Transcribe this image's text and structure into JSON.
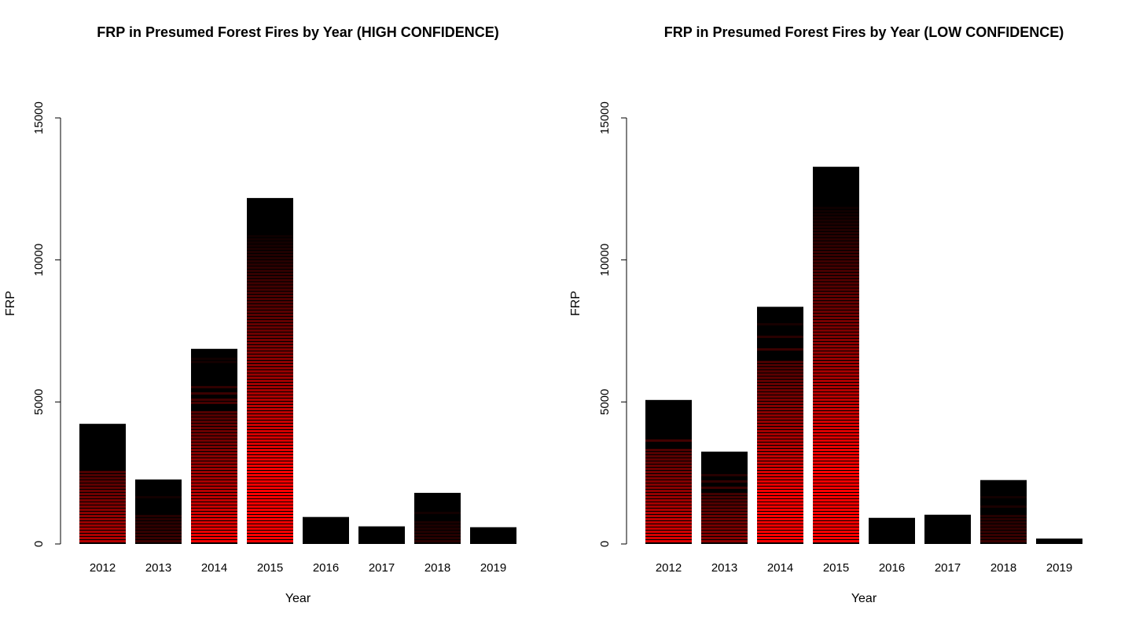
{
  "colors": {
    "background": "#ffffff",
    "bar_base": "#000000",
    "stripe": "#ff0000",
    "axis": "#000000"
  },
  "chart_data": [
    {
      "type": "bar",
      "title": "FRP in Presumed Forest Fires by Year (HIGH CONFIDENCE)",
      "xlabel": "Year",
      "ylabel": "FRP",
      "categories": [
        "2012",
        "2013",
        "2014",
        "2015",
        "2016",
        "2017",
        "2018",
        "2019"
      ],
      "values": [
        4230,
        2270,
        6870,
        12180,
        950,
        620,
        1800,
        590
      ],
      "red_intensity": [
        0.45,
        0.15,
        0.6,
        1.0,
        0.0,
        0.0,
        0.1,
        0.0
      ],
      "ylim": [
        0,
        15000
      ],
      "yticks": [
        "0",
        "5000",
        "10000",
        "15000"
      ],
      "grid": false,
      "legend": "none"
    },
    {
      "type": "bar",
      "title": "FRP in Presumed Forest Fires by Year (LOW CONFIDENCE)",
      "xlabel": "Year",
      "ylabel": "FRP",
      "categories": [
        "2012",
        "2013",
        "2014",
        "2015",
        "2016",
        "2017",
        "2018",
        "2019"
      ],
      "values": [
        5070,
        3250,
        8350,
        13280,
        920,
        1030,
        2250,
        190
      ],
      "red_intensity": [
        0.55,
        0.35,
        0.75,
        1.0,
        0.0,
        0.0,
        0.15,
        0.0
      ],
      "ylim": [
        0,
        15000
      ],
      "yticks": [
        "0",
        "5000",
        "10000",
        "15000"
      ],
      "grid": false,
      "legend": "none"
    }
  ]
}
